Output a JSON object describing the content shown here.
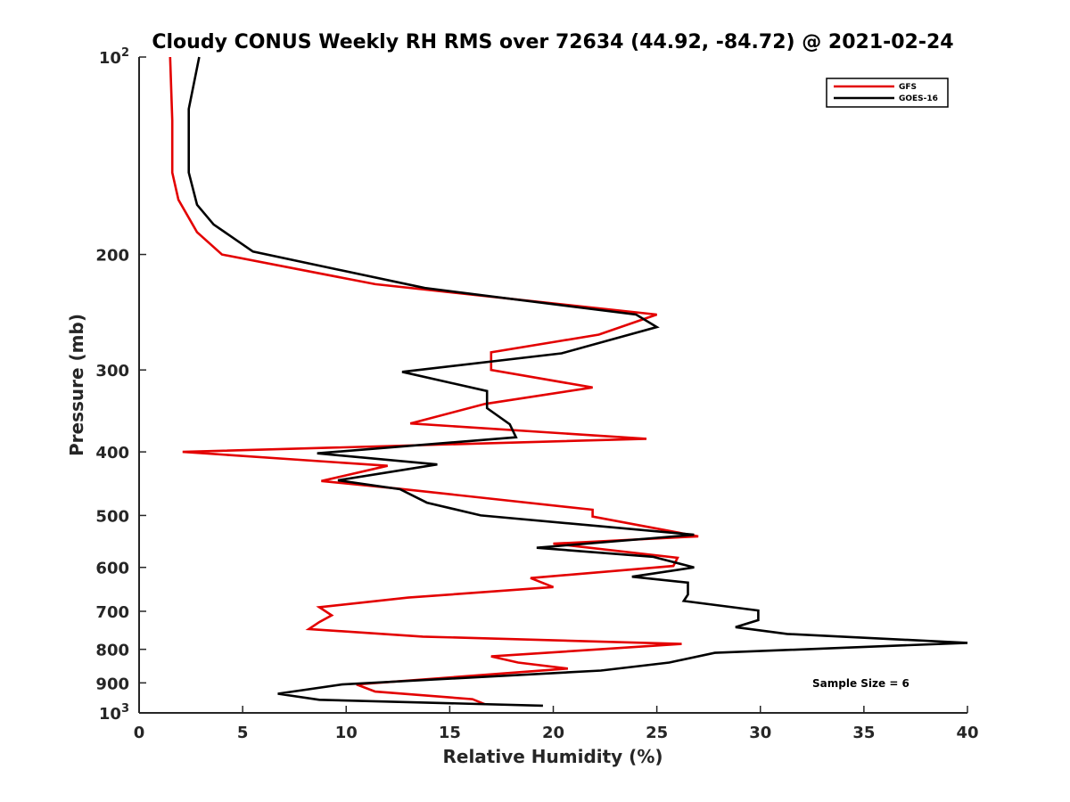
{
  "chart_data": {
    "type": "line",
    "title": "Cloudy CONUS Weekly RH RMS over 72634 (44.92, -84.72) @ 2021-02-24",
    "xlabel": "Relative Humidity (%)",
    "ylabel": "Pressure (mb)",
    "xlim": [
      0,
      40
    ],
    "ylim": [
      100,
      1000
    ],
    "y_scale": "log",
    "y_reversed": true,
    "x_ticks": [
      "0",
      "5",
      "10",
      "15",
      "20",
      "25",
      "30",
      "35",
      "40"
    ],
    "y_ticks": [
      {
        "value": 100,
        "base": "10",
        "exp": "2"
      },
      {
        "value": 200,
        "label": "200"
      },
      {
        "value": 300,
        "label": "300"
      },
      {
        "value": 400,
        "label": "400"
      },
      {
        "value": 500,
        "label": "500"
      },
      {
        "value": 600,
        "label": "600"
      },
      {
        "value": 700,
        "label": "700"
      },
      {
        "value": 800,
        "label": "800"
      },
      {
        "value": 900,
        "label": "900"
      },
      {
        "value": 1000,
        "base": "10",
        "exp": "3"
      }
    ],
    "grid": false,
    "legend_position": "top-right",
    "annotation": "Sample Size = 6",
    "series": [
      {
        "name": "GFS",
        "color": "#e30000",
        "points": [
          [
            1.5,
            100
          ],
          [
            1.6,
            125
          ],
          [
            1.6,
            150
          ],
          [
            1.9,
            165
          ],
          [
            2.8,
            185
          ],
          [
            4.0,
            200
          ],
          [
            11.4,
            222
          ],
          [
            25.0,
            247
          ],
          [
            22.2,
            265
          ],
          [
            17.0,
            282
          ],
          [
            17.0,
            300
          ],
          [
            21.9,
            319
          ],
          [
            16.7,
            338
          ],
          [
            13.1,
            362
          ],
          [
            24.5,
            382
          ],
          [
            2.1,
            400
          ],
          [
            12.0,
            420
          ],
          [
            8.8,
            443
          ],
          [
            12.5,
            455
          ],
          [
            21.9,
            490
          ],
          [
            21.9,
            502
          ],
          [
            27.0,
            538
          ],
          [
            20.0,
            552
          ],
          [
            26.0,
            580
          ],
          [
            25.8,
            597
          ],
          [
            18.9,
            623
          ],
          [
            20.0,
            643
          ],
          [
            13.0,
            667
          ],
          [
            8.7,
            690
          ],
          [
            9.3,
            710
          ],
          [
            8.7,
            727
          ],
          [
            8.2,
            745
          ],
          [
            13.7,
            765
          ],
          [
            26.2,
            785
          ],
          [
            17.0,
            820
          ],
          [
            18.3,
            838
          ],
          [
            20.7,
            856
          ],
          [
            10.5,
            905
          ],
          [
            11.4,
            928
          ],
          [
            16.1,
            953
          ],
          [
            16.7,
            970
          ]
        ]
      },
      {
        "name": "GOES-16",
        "color": "#000000",
        "points": [
          [
            2.9,
            100
          ],
          [
            2.4,
            120
          ],
          [
            2.4,
            150
          ],
          [
            2.8,
            168
          ],
          [
            3.6,
            180
          ],
          [
            5.5,
            198
          ],
          [
            13.8,
            225
          ],
          [
            24.0,
            247
          ],
          [
            25.0,
            258
          ],
          [
            20.4,
            283
          ],
          [
            12.7,
            302
          ],
          [
            16.8,
            323
          ],
          [
            16.8,
            343
          ],
          [
            17.9,
            363
          ],
          [
            18.2,
            380
          ],
          [
            8.6,
            402
          ],
          [
            14.4,
            418
          ],
          [
            9.6,
            442
          ],
          [
            12.6,
            456
          ],
          [
            13.9,
            478
          ],
          [
            16.5,
            500
          ],
          [
            26.8,
            535
          ],
          [
            19.2,
            560
          ],
          [
            24.8,
            578
          ],
          [
            26.8,
            600
          ],
          [
            23.8,
            620
          ],
          [
            26.5,
            633
          ],
          [
            26.5,
            660
          ],
          [
            26.3,
            675
          ],
          [
            29.9,
            698
          ],
          [
            29.9,
            722
          ],
          [
            28.8,
            740
          ],
          [
            31.3,
            758
          ],
          [
            40.0,
            782
          ],
          [
            27.8,
            810
          ],
          [
            25.6,
            838
          ],
          [
            22.3,
            862
          ],
          [
            9.8,
            905
          ],
          [
            6.7,
            935
          ],
          [
            8.7,
            955
          ],
          [
            19.5,
            975
          ]
        ]
      }
    ]
  }
}
